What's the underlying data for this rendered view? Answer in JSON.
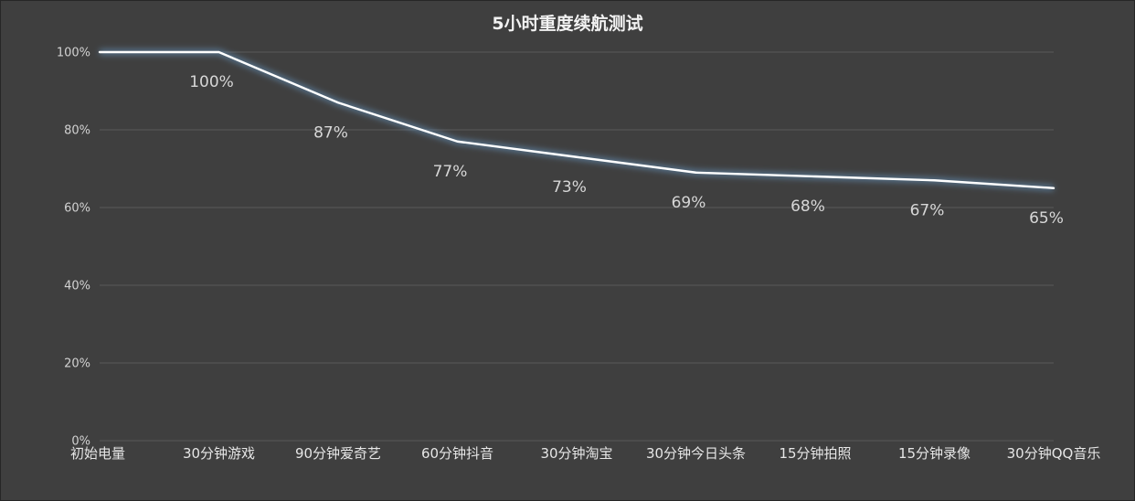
{
  "chart_data": {
    "type": "line",
    "title": "5小时重度续航测试",
    "categories": [
      "初始电量",
      "30分钟游戏",
      "90分钟爱奇艺",
      "60分钟抖音",
      "30分钟淘宝",
      "30分钟今日头条",
      "15分钟拍照",
      "15分钟录像",
      "30分钟QQ音乐"
    ],
    "series": [
      {
        "values": [
          100,
          100,
          87,
          77,
          73,
          69,
          68,
          67,
          65
        ]
      }
    ],
    "data_labels": [
      "100%",
      "87%",
      "77%",
      "73%",
      "69%",
      "68%",
      "67%",
      "65%"
    ],
    "yticks": [
      "0%",
      "20%",
      "40%",
      "60%",
      "80%",
      "100%"
    ],
    "ylim": [
      0,
      100
    ],
    "xlabel": "",
    "ylabel": "",
    "grid": true,
    "legend": "none",
    "colors": {
      "background": "#3f3f3f",
      "line": "#ffffff",
      "glow": "#6fa8dc",
      "grid": "#5a5a5a",
      "text": "#e6e6e6"
    }
  }
}
